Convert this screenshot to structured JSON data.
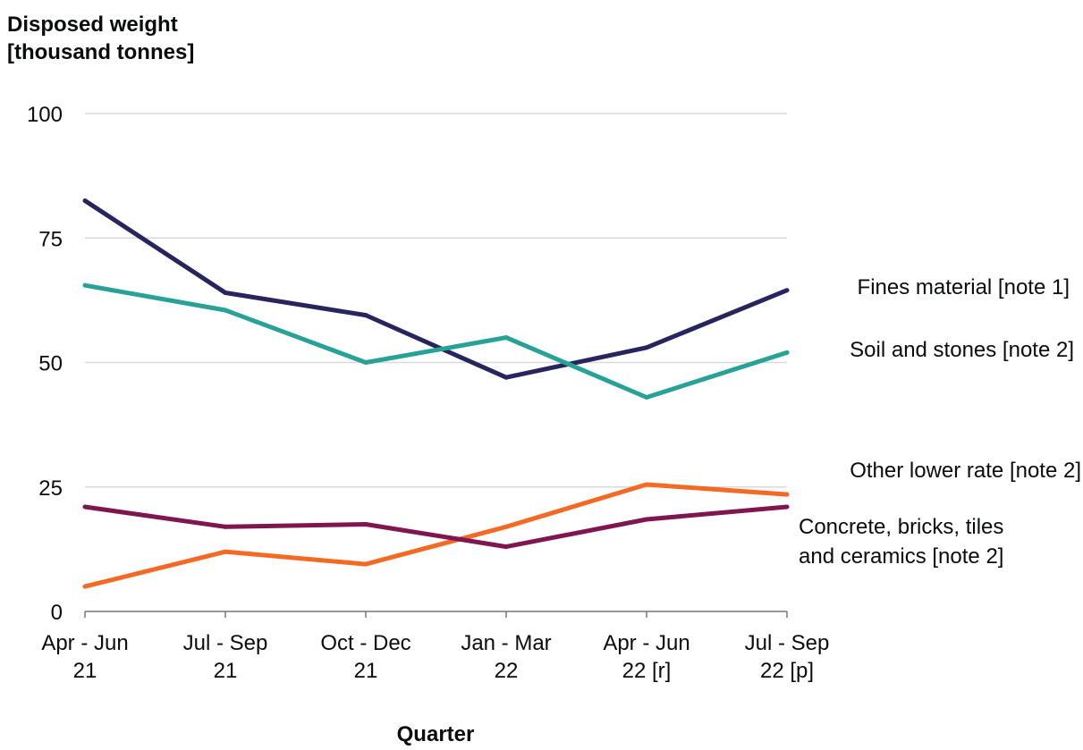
{
  "chart_data": {
    "type": "line",
    "ylabel_lines": [
      "Disposed weight",
      "[thousand tonnes]"
    ],
    "xlabel": "Quarter",
    "categories": [
      [
        "Apr - Jun",
        "21"
      ],
      [
        "Jul - Sep",
        "21"
      ],
      [
        "Oct - Dec",
        "21"
      ],
      [
        "Jan - Mar",
        "22"
      ],
      [
        "Apr - Jun",
        "22 [r]"
      ],
      [
        "Jul - Sep",
        "22 [p]"
      ]
    ],
    "ylim": [
      0,
      100
    ],
    "yticks": [
      0,
      25,
      50,
      75,
      100
    ],
    "grid": true,
    "legend": "direct labels at line ends (right)",
    "series": [
      {
        "name": "Fines material [note 1]",
        "label_lines": [
          "Fines material [note 1]"
        ],
        "color": "#28245e",
        "values": [
          82.5,
          64.0,
          59.5,
          47.0,
          53.0,
          64.5
        ]
      },
      {
        "name": "Soil and stones [note 2]",
        "label_lines": [
          "Soil and stones [note 2]"
        ],
        "color": "#28a197",
        "values": [
          65.5,
          60.5,
          50.0,
          55.0,
          43.0,
          52.0
        ]
      },
      {
        "name": "Other lower rate [note 2]",
        "label_lines": [
          "Other lower rate [note 2]"
        ],
        "color": "#f46a25",
        "values": [
          5.0,
          12.0,
          9.5,
          17.0,
          25.5,
          23.5
        ]
      },
      {
        "name": "Concrete, bricks, tiles and ceramics [note 2]",
        "label_lines": [
          "Concrete, bricks, tiles",
          "and ceramics [note 2]"
        ],
        "color": "#801650",
        "values": [
          21.0,
          17.0,
          17.5,
          13.0,
          18.5,
          21.0
        ]
      }
    ]
  }
}
